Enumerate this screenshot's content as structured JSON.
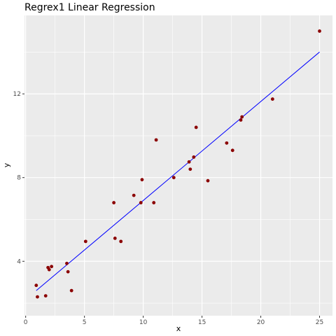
{
  "chart_data": {
    "type": "scatter",
    "title": "Regrex1 Linear Regression",
    "xlabel": "x",
    "ylabel": "y",
    "xlim": [
      -0.1,
      26.1
    ],
    "ylim": [
      1.4,
      15.75
    ],
    "x_ticks": [
      0,
      5,
      10,
      15,
      20,
      25
    ],
    "y_ticks": [
      4,
      8,
      12
    ],
    "x_tick_labels": [
      "0",
      "5",
      "10",
      "15",
      "20",
      "25"
    ],
    "y_tick_labels": [
      "4",
      "8",
      "12"
    ],
    "grid": true,
    "background": "#ebebeb",
    "point_color": "#8b0000",
    "line_color": "#0000ff",
    "series": [
      {
        "x": [
          0.9,
          1.0,
          1.7,
          1.9,
          2.0,
          2.2,
          3.5,
          3.6,
          3.9,
          5.1,
          7.5,
          7.6,
          8.1,
          9.2,
          9.8,
          9.9,
          10.9,
          11.1,
          12.6,
          13.9,
          14.0,
          14.3,
          14.5,
          15.5,
          17.1,
          17.6,
          18.3,
          18.4,
          21.0,
          25.0
        ],
        "y": [
          2.85,
          2.3,
          2.35,
          3.7,
          3.6,
          3.75,
          3.9,
          3.5,
          2.6,
          4.95,
          6.8,
          5.1,
          4.95,
          7.15,
          6.8,
          7.9,
          6.8,
          9.8,
          8.0,
          8.75,
          8.4,
          8.98,
          10.4,
          7.85,
          9.65,
          9.3,
          10.75,
          10.9,
          11.75,
          15.0
        ]
      }
    ],
    "regression_line": {
      "x": [
        0.9,
        25.0
      ],
      "y": [
        2.6,
        14.0
      ]
    }
  }
}
